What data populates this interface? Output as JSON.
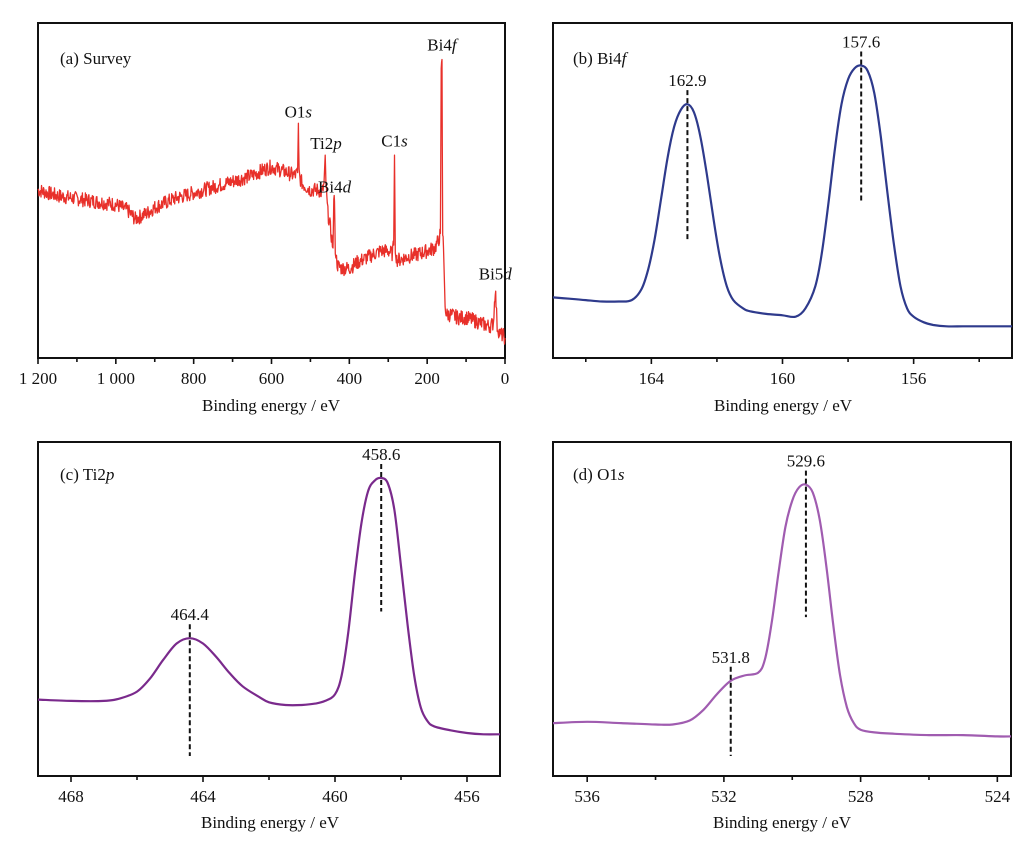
{
  "chart_data": [
    {
      "id": "a",
      "type": "line",
      "title": "(a) Survey",
      "title_plain": "(a) Survey",
      "xlabel": "Binding energy / eV",
      "ylabel": "",
      "xlim": [
        1200,
        0
      ],
      "x_reversed": true,
      "ylim": [
        0,
        100
      ],
      "y_ticks_shown": false,
      "grid": false,
      "line_color": "#e8302a",
      "noisy": true,
      "xticks_major": [
        1200,
        1000,
        800,
        600,
        400,
        200,
        0
      ],
      "xtick_labels": [
        "1 200",
        "1 000",
        "800",
        "600",
        "400",
        "200",
        "0"
      ],
      "xticks_minor": [
        1100,
        900,
        700,
        500,
        300,
        100
      ],
      "series": [
        {
          "name": "Survey",
          "x": [
            1200,
            1150,
            1100,
            1050,
            1000,
            970,
            950,
            920,
            900,
            850,
            800,
            750,
            700,
            650,
            620,
            600,
            580,
            560,
            540,
            533,
            531,
            529,
            527,
            520,
            500,
            480,
            470,
            465,
            462,
            460,
            458,
            455,
            450,
            445,
            442,
            440,
            438,
            436,
            433,
            430,
            420,
            410,
            400,
            380,
            350,
            320,
            300,
            290,
            286,
            284,
            282,
            278,
            270,
            250,
            220,
            200,
            180,
            170,
            166,
            164,
            162,
            160,
            158,
            156,
            154,
            150,
            140,
            120,
            100,
            80,
            60,
            40,
            30,
            27,
            25,
            23,
            20,
            15,
            10,
            5,
            0
          ],
          "y": [
            50,
            48,
            47,
            46,
            45,
            43,
            40,
            42,
            44,
            47,
            49,
            51,
            53,
            55,
            57,
            58,
            57,
            56,
            55,
            56,
            73,
            56,
            54,
            52,
            50,
            50,
            49,
            52,
            60,
            52,
            47,
            42,
            38,
            33,
            30,
            46,
            46,
            30,
            26,
            24,
            23,
            23,
            23,
            25,
            27,
            29,
            29,
            28,
            31,
            62,
            30,
            26,
            26,
            27,
            28,
            29,
            30,
            33,
            35,
            90,
            95,
            35,
            30,
            20,
            10,
            7,
            7,
            6,
            6,
            5,
            4,
            3,
            4,
            11,
            16,
            11,
            3,
            1,
            0,
            0,
            -1
          ]
        }
      ],
      "annotations": [
        {
          "label_main": "O1",
          "label_italic": "s",
          "x": 531,
          "y": 73
        },
        {
          "label_main": "Ti2",
          "label_italic": "p",
          "x": 460,
          "y": 62
        },
        {
          "label_main": "Bi4",
          "label_italic": "d",
          "x": 438,
          "y": 47
        },
        {
          "label_main": "C1",
          "label_italic": "s",
          "x": 284,
          "y": 63
        },
        {
          "label_main": "Bi4",
          "label_italic": "f",
          "x": 162,
          "y": 96
        },
        {
          "label_main": "Bi5",
          "label_italic": "d",
          "x": 25,
          "y": 17
        }
      ]
    },
    {
      "id": "b",
      "type": "line",
      "title": "(b) Bi4f",
      "title_main": "(b) Bi4",
      "title_italic": "f",
      "xlabel": "Binding energy / eV",
      "ylabel": "",
      "xlim": [
        167,
        153
      ],
      "x_reversed": true,
      "ylim": [
        0,
        100
      ],
      "y_ticks_shown": false,
      "grid": false,
      "line_color": "#2e3a8c",
      "xticks_major": [
        164,
        160,
        156
      ],
      "xtick_labels": [
        "164",
        "160",
        "156"
      ],
      "xticks_minor": [
        166,
        162,
        158,
        154
      ],
      "series": [
        {
          "name": "Bi4f",
          "x": [
            167,
            166.5,
            166,
            165.5,
            165,
            164.6,
            164.3,
            164.1,
            163.9,
            163.7,
            163.5,
            163.3,
            163.1,
            162.9,
            162.7,
            162.5,
            162.3,
            162.1,
            161.9,
            161.7,
            161.5,
            161.2,
            161,
            160.5,
            160,
            159.6,
            159.3,
            159.0,
            158.8,
            158.6,
            158.4,
            158.2,
            158.0,
            157.8,
            157.6,
            157.4,
            157.2,
            157.0,
            156.8,
            156.6,
            156.4,
            156.2,
            156.0,
            155.7,
            155.4,
            155,
            154.5,
            154,
            153.5,
            153
          ],
          "y": [
            14,
            13.5,
            13,
            12.5,
            12.5,
            13,
            17,
            24,
            35,
            50,
            65,
            76,
            82,
            84,
            81,
            72,
            58,
            42,
            28,
            18,
            13,
            10,
            9,
            8,
            7.5,
            7,
            10,
            18,
            30,
            48,
            68,
            84,
            93,
            97,
            98,
            96,
            88,
            72,
            52,
            33,
            18,
            10,
            7,
            5,
            4,
            3.5,
            3.5,
            3.5,
            3.5,
            3.5
          ]
        }
      ],
      "peaks": [
        {
          "label": "162.9",
          "x": 162.9
        },
        {
          "label": "157.6",
          "x": 157.6
        }
      ]
    },
    {
      "id": "c",
      "type": "line",
      "title": "(c) Ti2p",
      "title_main": "(c) Ti2",
      "title_italic": "p",
      "xlabel": "Binding energy / eV",
      "ylabel": "",
      "xlim": [
        469,
        455
      ],
      "x_reversed": true,
      "ylim": [
        0,
        100
      ],
      "y_ticks_shown": false,
      "grid": false,
      "line_color": "#7a2a8c",
      "xticks_major": [
        468,
        464,
        460,
        456
      ],
      "xtick_labels": [
        "468",
        "464",
        "460",
        "456"
      ],
      "xticks_minor": [
        466,
        462,
        458
      ],
      "series": [
        {
          "name": "Ti2p",
          "x": [
            469,
            468,
            467,
            466.5,
            466,
            465.6,
            465.2,
            464.8,
            464.4,
            464.0,
            463.6,
            463.2,
            462.8,
            462.3,
            462,
            461.5,
            461,
            460.6,
            460.3,
            460.0,
            459.8,
            459.6,
            459.4,
            459.2,
            459.0,
            458.8,
            458.6,
            458.4,
            458.2,
            458.0,
            457.8,
            457.6,
            457.4,
            457.2,
            457.0,
            456.5,
            456,
            455.5,
            455
          ],
          "y": [
            17,
            16.5,
            16.5,
            17.5,
            20,
            25,
            32,
            38,
            40,
            38,
            33,
            27,
            22,
            18,
            16,
            15,
            15,
            15.5,
            16.5,
            19,
            26,
            42,
            64,
            83,
            95,
            99,
            100,
            98,
            88,
            67,
            45,
            26,
            14,
            9,
            7,
            5.5,
            4.5,
            4,
            4
          ]
        }
      ],
      "peaks": [
        {
          "label": "464.4",
          "x": 464.4
        },
        {
          "label": "458.6",
          "x": 458.6
        }
      ]
    },
    {
      "id": "d",
      "type": "line",
      "title": "(d) O1s",
      "title_main": "(d) O1",
      "title_italic": "s",
      "xlabel": "Binding energy / eV",
      "ylabel": "",
      "xlim": [
        537,
        523.6
      ],
      "x_reversed": true,
      "ylim": [
        0,
        100
      ],
      "y_ticks_shown": false,
      "grid": false,
      "line_color": "#a05cb0",
      "xticks_major": [
        536,
        532,
        528,
        524
      ],
      "xtick_labels": [
        "536",
        "532",
        "528",
        "524"
      ],
      "xticks_minor": [
        534,
        530,
        526
      ],
      "series": [
        {
          "name": "O1s",
          "x": [
            537,
            536,
            535,
            534,
            533.5,
            533,
            532.6,
            532.2,
            531.8,
            531.4,
            531.0,
            530.8,
            530.6,
            530.4,
            530.2,
            530.0,
            529.8,
            529.6,
            529.4,
            529.2,
            529.0,
            528.8,
            528.6,
            528.4,
            528.2,
            528.0,
            527.6,
            527,
            526,
            525,
            524,
            523.6
          ],
          "y": [
            9,
            9.5,
            9,
            8.5,
            8.5,
            10,
            14,
            20,
            25,
            27,
            28,
            33,
            47,
            66,
            83,
            93,
            98,
            99,
            96,
            86,
            68,
            46,
            27,
            15,
            9,
            6.5,
            5.5,
            5,
            4.5,
            4.5,
            4,
            4
          ]
        }
      ],
      "peaks": [
        {
          "label": "531.8",
          "x": 531.8
        },
        {
          "label": "529.6",
          "x": 529.6
        }
      ]
    }
  ]
}
